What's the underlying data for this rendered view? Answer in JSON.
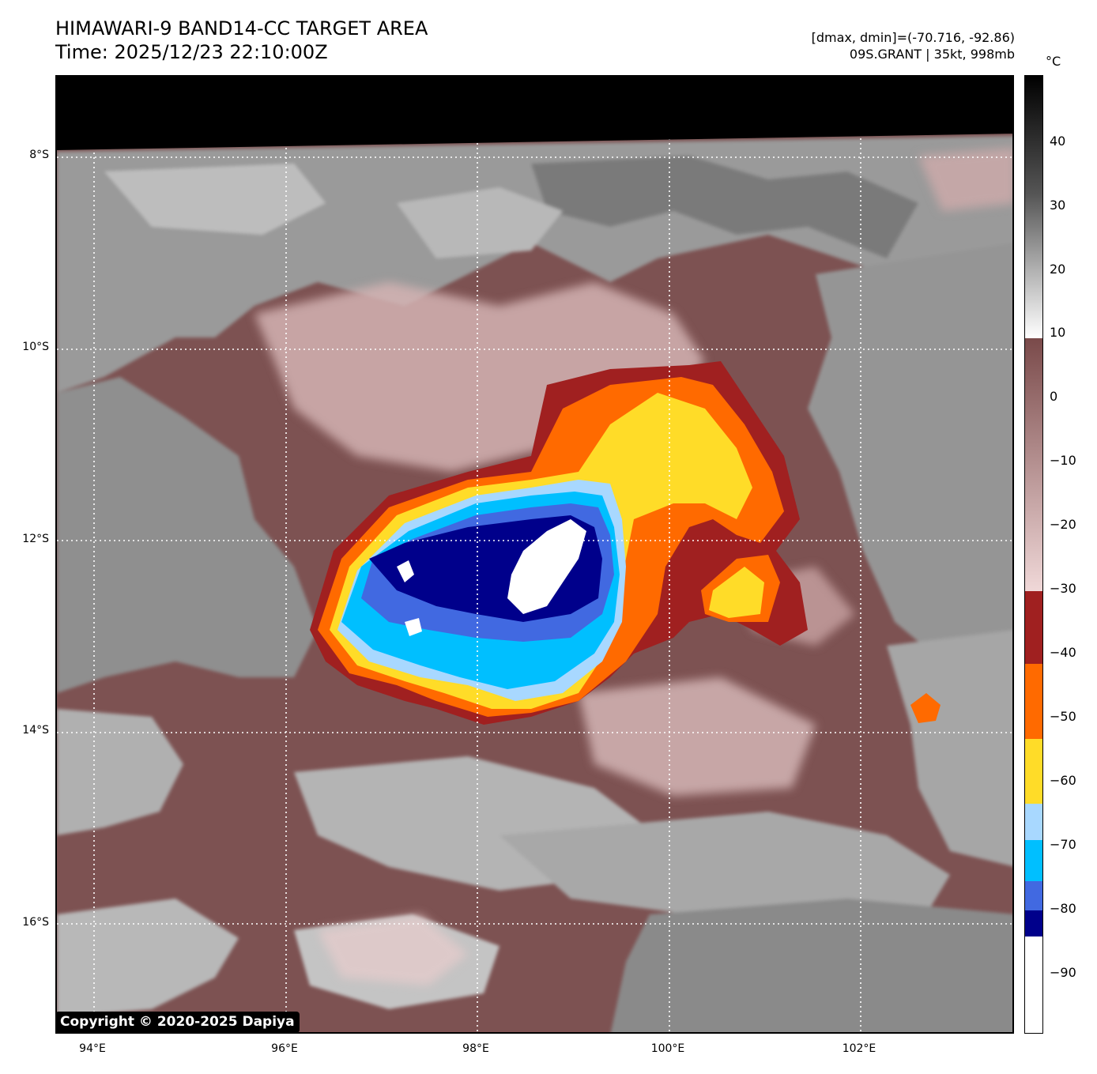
{
  "header": {
    "title_line1": "HIMAWARI-9 BAND14-CC TARGET AREA",
    "title_line2": "Time: 2025/12/23 22:10:00Z",
    "info_line1": "[dmax, dmin]=(-70.716, -92.86)",
    "info_line2": "09S.GRANT | 35kt, 998mb"
  },
  "map": {
    "lat_labels": [
      "8°S",
      "10°S",
      "12°S",
      "14°S",
      "16°S"
    ],
    "lon_labels": [
      "94°E",
      "96°E",
      "98°E",
      "100°E",
      "102°E"
    ],
    "copyright": "Copyright © 2020-2025 Dapiya"
  },
  "colorbar": {
    "unit": "°C",
    "ticks": [
      "40",
      "30",
      "20",
      "10",
      "0",
      "−10",
      "−20",
      "−30",
      "−40",
      "−50",
      "−60",
      "−70",
      "−80",
      "−90"
    ],
    "colors": {
      "warm_top": "#000000",
      "gray_mid": "#8c8c8c",
      "white": "#ffffff",
      "brown": "#7a4a4a",
      "pink": "#f0d8d8",
      "dark_red": "#a02020",
      "orange": "#ff6a00",
      "yellow": "#ffdc28",
      "light_blue": "#a8d8ff",
      "cyan": "#00bfff",
      "royal_blue": "#4169e1",
      "navy": "#00008b",
      "coldest": "#ffffff"
    }
  }
}
